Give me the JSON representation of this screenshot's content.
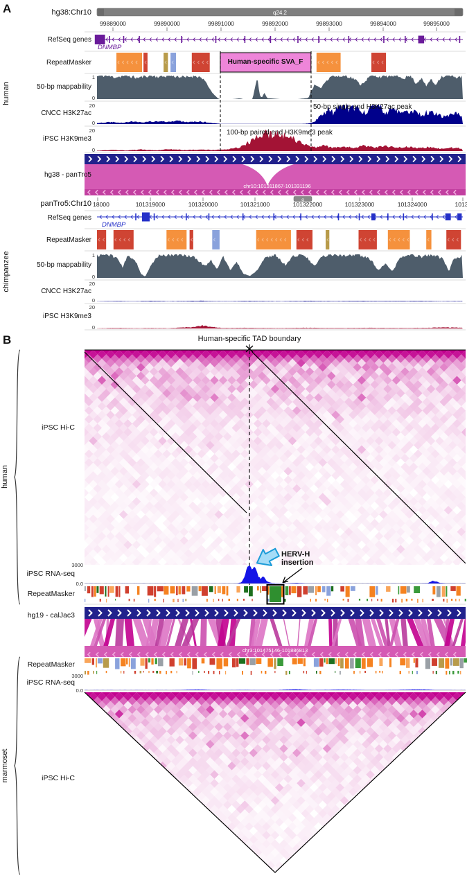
{
  "colors": {
    "ideogram": "#7f7f7f",
    "gene_purple": "#6a1b9a",
    "gene_blue": "#2430c8",
    "repeat_orange": "#f5913d",
    "repeat_red": "#cf4433",
    "repeat_tan": "#b89b4a",
    "repeat_blue": "#8aa2dc",
    "sva_pink": "#ee85d9",
    "mappability": "#4e5d6b",
    "h3k27ac": "#00008b",
    "h3k9me3": "#a31335",
    "align_navy": "#21218c",
    "align_magenta": "#d55ab4",
    "align_band": "#c23fa0",
    "chevron_light": "#f2aee0",
    "hic": "#c2008f",
    "rnaseq_blue": "#1414e6",
    "ribbons": [
      "#cb4fae",
      "#b93a9c",
      "#dd74c4",
      "#c2008f"
    ],
    "repeat_palette_b": [
      "#f58220",
      "#f58220",
      "#f58220",
      "#f9a55a",
      "#3a9a3a",
      "#1d6f1d",
      "#d0402f",
      "#8aa2dc",
      "#9aa0a6",
      "#b89b4a",
      "#f58220",
      "#3a9a3a",
      "#d0402f",
      "#f58220",
      "#f9a55a",
      "#d0402f"
    ],
    "hervh_arrow_stroke": "#1b9cd8",
    "hervh_arrow_fill": "#a6dcf7",
    "hervh_box_green": "#2f8f2f"
  },
  "panel_a": {
    "label": "A",
    "species_top": "human",
    "species_bottom": "chimpanzee",
    "scales": {
      "one": "1",
      "zero": "0",
      "twenty": "20"
    },
    "track_labels": {
      "refseq": "RefSeq genes",
      "repeat": "RepeatMasker",
      "mappability": "50-bp mappability",
      "h3k27ac": "CNCC H3K27ac",
      "h3k9me3": "iPSC H3K9me3"
    },
    "alignment_label": "hg38 - panTro5",
    "alignment_region": "chr10:101311867-101331196",
    "human": {
      "assembly_label": "hg38:Chr10",
      "ideogram_band": "q24.2",
      "gene": "DNMBP",
      "tick_labels": [
        "99889000",
        "99890000",
        "99891000",
        "99892000",
        "99893000",
        "99894000",
        "99895000"
      ],
      "sva_label": "Human-specific SVA_F",
      "h3k27ac_annotation": "50-bp single end H3K27ac peak",
      "h3k9me3_annotation": "100-bp paired end H3K9me3 peak",
      "gene_exons": [
        {
          "f": -0.006,
          "w": 0.028,
          "h": 14
        },
        {
          "f": 0.878,
          "w": 0.016,
          "h": 11
        }
      ],
      "sva": {
        "f": 0.337,
        "w": 0.248
      },
      "repeats": [
        {
          "f": 0.053,
          "w": 0.07,
          "color": "orange"
        },
        {
          "f": 0.127,
          "w": 0.011,
          "color": "red"
        },
        {
          "f": 0.182,
          "w": 0.012,
          "color": "tan"
        },
        {
          "f": 0.201,
          "w": 0.015,
          "color": "blue"
        },
        {
          "f": 0.259,
          "w": 0.049,
          "color": "red"
        },
        {
          "f": 0.6,
          "w": 0.066,
          "color": "orange"
        },
        {
          "f": 0.75,
          "w": 0.04,
          "color": "red"
        }
      ]
    },
    "chimp": {
      "assembly_label": "panTro5:Chr10",
      "ideogram_band": "q",
      "gene": "DNMBP",
      "tick_labels": [
        "18000",
        "101319000",
        "101320000",
        "101321000",
        "101322000",
        "101323000",
        "101324000",
        "1013"
      ],
      "gene_exons": [
        {
          "f": 0.123,
          "w": 0.021,
          "h": 13
        },
        {
          "f": 0.75,
          "w": 0.011,
          "h": 10
        },
        {
          "f": 0.952,
          "w": 0.015,
          "h": 10
        },
        {
          "f": 0.985,
          "w": 0.012,
          "h": 10
        }
      ],
      "repeats": [
        {
          "f": 0.0,
          "w": 0.025,
          "color": "red"
        },
        {
          "f": 0.045,
          "w": 0.055,
          "color": "red"
        },
        {
          "f": 0.19,
          "w": 0.055,
          "color": "orange"
        },
        {
          "f": 0.253,
          "w": 0.01,
          "color": "red"
        },
        {
          "f": 0.315,
          "w": 0.02,
          "color": "blue"
        },
        {
          "f": 0.435,
          "w": 0.095,
          "color": "orange"
        },
        {
          "f": 0.545,
          "w": 0.044,
          "color": "red"
        },
        {
          "f": 0.625,
          "w": 0.01,
          "color": "tan"
        },
        {
          "f": 0.715,
          "w": 0.05,
          "color": "red"
        },
        {
          "f": 0.795,
          "w": 0.06,
          "color": "orange"
        },
        {
          "f": 0.9,
          "w": 0.014,
          "color": "orange"
        },
        {
          "f": 0.955,
          "w": 0.04,
          "color": "red"
        }
      ]
    }
  },
  "panel_b": {
    "label": "B",
    "boundary_annotation": "Human-specific TAD boundary",
    "human_species": "human",
    "marmoset_species": "marmoset",
    "hic_label": "iPSC Hi-C",
    "rnaseq_label": "iPSC RNA-seq",
    "repeat_label": "RepeatMasker",
    "rnaseq_max": "3000",
    "rnaseq_min": "0.0",
    "alignment_label": "hg19 - calJac3",
    "alignment_region": "chr3:101475146-101886813",
    "hervh_line1": "HERV-H",
    "hervh_line2": "insertion"
  },
  "chart_data": [
    {
      "id": "human_mappability",
      "type": "area",
      "title": "50-bp mappability (human hg38)",
      "ylim": [
        0,
        1
      ],
      "points": [
        [
          0,
          0.97
        ],
        [
          0.02,
          1
        ],
        [
          0.05,
          0.93
        ],
        [
          0.08,
          1
        ],
        [
          0.11,
          0.9
        ],
        [
          0.14,
          1
        ],
        [
          0.17,
          0.95
        ],
        [
          0.2,
          1
        ],
        [
          0.24,
          0.92
        ],
        [
          0.27,
          1
        ],
        [
          0.29,
          0.88
        ],
        [
          0.305,
          0.5
        ],
        [
          0.32,
          0.18
        ],
        [
          0.33,
          0.04
        ],
        [
          0.335,
          0
        ],
        [
          0.37,
          0
        ],
        [
          0.39,
          0.03
        ],
        [
          0.4,
          0
        ],
        [
          0.425,
          0
        ],
        [
          0.433,
          0.55
        ],
        [
          0.438,
          1
        ],
        [
          0.444,
          0.2
        ],
        [
          0.45,
          0.05
        ],
        [
          0.458,
          0.28
        ],
        [
          0.465,
          0.04
        ],
        [
          0.5,
          0
        ],
        [
          0.55,
          0
        ],
        [
          0.578,
          0.05
        ],
        [
          0.585,
          0.35
        ],
        [
          0.595,
          0.6
        ],
        [
          0.61,
          0.45
        ],
        [
          0.625,
          0.75
        ],
        [
          0.64,
          1
        ],
        [
          0.66,
          0.95
        ],
        [
          0.68,
          1
        ],
        [
          0.705,
          0.85
        ],
        [
          0.72,
          0.6
        ],
        [
          0.735,
          0.8
        ],
        [
          0.75,
          1
        ],
        [
          0.78,
          0.95
        ],
        [
          0.81,
          1
        ],
        [
          0.84,
          0.9
        ],
        [
          0.858,
          1
        ],
        [
          0.872,
          0.65
        ],
        [
          0.886,
          0.9
        ],
        [
          0.9,
          0.55
        ],
        [
          0.912,
          0.85
        ],
        [
          0.925,
          0.6
        ],
        [
          0.94,
          0.95
        ],
        [
          0.96,
          1
        ],
        [
          0.98,
          0.93
        ],
        [
          1,
          0.97
        ]
      ]
    },
    {
      "id": "human_h3k27ac",
      "type": "area",
      "title": "CNCC H3K27ac (human)",
      "ylim": [
        0,
        20
      ],
      "points": [
        [
          0,
          1
        ],
        [
          0.04,
          2.2
        ],
        [
          0.07,
          1.4
        ],
        [
          0.1,
          2.8
        ],
        [
          0.13,
          1.8
        ],
        [
          0.16,
          3
        ],
        [
          0.19,
          2
        ],
        [
          0.22,
          3.2
        ],
        [
          0.25,
          2.2
        ],
        [
          0.28,
          2.8
        ],
        [
          0.3,
          1.6
        ],
        [
          0.32,
          0.8
        ],
        [
          0.34,
          0.2
        ],
        [
          0.45,
          0.15
        ],
        [
          0.56,
          0.2
        ],
        [
          0.58,
          0.6
        ],
        [
          0.592,
          2
        ],
        [
          0.605,
          6
        ],
        [
          0.62,
          11
        ],
        [
          0.635,
          15
        ],
        [
          0.648,
          11
        ],
        [
          0.66,
          17
        ],
        [
          0.675,
          19.5
        ],
        [
          0.69,
          14
        ],
        [
          0.71,
          18
        ],
        [
          0.73,
          12
        ],
        [
          0.75,
          16
        ],
        [
          0.77,
          18.5
        ],
        [
          0.79,
          12
        ],
        [
          0.81,
          16
        ],
        [
          0.835,
          10
        ],
        [
          0.86,
          14
        ],
        [
          0.885,
          9
        ],
        [
          0.91,
          13
        ],
        [
          0.94,
          8
        ],
        [
          0.97,
          11
        ],
        [
          1,
          9
        ]
      ]
    },
    {
      "id": "human_h3k9me3",
      "type": "area",
      "title": "iPSC H3K9me3 (human)",
      "ylim": [
        0,
        20
      ],
      "points": [
        [
          0,
          0.3
        ],
        [
          0.04,
          1
        ],
        [
          0.08,
          0.5
        ],
        [
          0.12,
          1.4
        ],
        [
          0.16,
          0.7
        ],
        [
          0.2,
          1.8
        ],
        [
          0.24,
          0.9
        ],
        [
          0.28,
          1.4
        ],
        [
          0.32,
          1
        ],
        [
          0.36,
          1.8
        ],
        [
          0.385,
          3
        ],
        [
          0.405,
          6
        ],
        [
          0.425,
          10
        ],
        [
          0.445,
          14
        ],
        [
          0.46,
          16.5
        ],
        [
          0.475,
          15
        ],
        [
          0.49,
          17
        ],
        [
          0.505,
          15.5
        ],
        [
          0.52,
          13
        ],
        [
          0.54,
          11
        ],
        [
          0.56,
          7
        ],
        [
          0.58,
          4.5
        ],
        [
          0.6,
          3.5
        ],
        [
          0.62,
          5
        ],
        [
          0.645,
          3
        ],
        [
          0.67,
          4.5
        ],
        [
          0.7,
          3
        ],
        [
          0.73,
          5
        ],
        [
          0.76,
          3.2
        ],
        [
          0.79,
          4.6
        ],
        [
          0.82,
          3
        ],
        [
          0.85,
          4.2
        ],
        [
          0.88,
          2.6
        ],
        [
          0.91,
          3.8
        ],
        [
          0.94,
          2.2
        ],
        [
          0.97,
          3
        ],
        [
          1,
          2.4
        ]
      ]
    },
    {
      "id": "chimp_mappability",
      "type": "area",
      "title": "50-bp mappability (chimpanzee panTro5)",
      "ylim": [
        0,
        1
      ],
      "points": [
        [
          0,
          0.95
        ],
        [
          0.03,
          1
        ],
        [
          0.055,
          0.85
        ],
        [
          0.07,
          0.45
        ],
        [
          0.085,
          0.95
        ],
        [
          0.105,
          0.75
        ],
        [
          0.12,
          0.18
        ],
        [
          0.132,
          0.05
        ],
        [
          0.148,
          0.55
        ],
        [
          0.17,
          1
        ],
        [
          0.2,
          0.95
        ],
        [
          0.23,
          1
        ],
        [
          0.265,
          0.88
        ],
        [
          0.295,
          0.5
        ],
        [
          0.312,
          0.75
        ],
        [
          0.328,
          0.38
        ],
        [
          0.345,
          0.9
        ],
        [
          0.365,
          0.32
        ],
        [
          0.382,
          0.68
        ],
        [
          0.4,
          0.18
        ],
        [
          0.418,
          0.08
        ],
        [
          0.438,
          0.32
        ],
        [
          0.458,
          0.82
        ],
        [
          0.485,
          1
        ],
        [
          0.515,
          0.55
        ],
        [
          0.538,
          0.95
        ],
        [
          0.565,
          1
        ],
        [
          0.595,
          0.48
        ],
        [
          0.612,
          0.88
        ],
        [
          0.645,
          1
        ],
        [
          0.678,
          0.95
        ],
        [
          0.715,
          1
        ],
        [
          0.748,
          0.78
        ],
        [
          0.768,
          0.32
        ],
        [
          0.788,
          0.58
        ],
        [
          0.808,
          0.28
        ],
        [
          0.828,
          0.85
        ],
        [
          0.858,
          1
        ],
        [
          0.888,
          0.9
        ],
        [
          0.915,
          1
        ],
        [
          0.945,
          0.82
        ],
        [
          0.962,
          0.28
        ],
        [
          0.975,
          0.78
        ],
        [
          1,
          0.95
        ]
      ]
    },
    {
      "id": "chimp_h3k27ac",
      "type": "area",
      "title": "CNCC H3K27ac (chimpanzee)",
      "ylim": [
        0,
        20
      ],
      "points": [
        [
          0,
          0.2
        ],
        [
          0.05,
          0.5
        ],
        [
          0.1,
          0.25
        ],
        [
          0.15,
          0.6
        ],
        [
          0.2,
          0.3
        ],
        [
          0.28,
          0.65
        ],
        [
          0.35,
          0.3
        ],
        [
          0.42,
          0.55
        ],
        [
          0.5,
          0.3
        ],
        [
          0.58,
          0.6
        ],
        [
          0.65,
          0.35
        ],
        [
          0.72,
          0.6
        ],
        [
          0.8,
          0.4
        ],
        [
          0.88,
          0.55
        ],
        [
          0.94,
          0.3
        ],
        [
          1,
          0.4
        ]
      ]
    },
    {
      "id": "chimp_h3k9me3",
      "type": "area",
      "title": "iPSC H3K9me3 (chimpanzee)",
      "ylim": [
        0,
        20
      ],
      "points": [
        [
          0,
          0.2
        ],
        [
          0.05,
          0.55
        ],
        [
          0.1,
          0.3
        ],
        [
          0.15,
          0.5
        ],
        [
          0.2,
          0.35
        ],
        [
          0.26,
          1.2
        ],
        [
          0.29,
          2.8
        ],
        [
          0.315,
          1.4
        ],
        [
          0.34,
          0.5
        ],
        [
          0.42,
          0.6
        ],
        [
          0.5,
          0.4
        ],
        [
          0.58,
          0.65
        ],
        [
          0.66,
          0.4
        ],
        [
          0.74,
          0.6
        ],
        [
          0.82,
          0.45
        ],
        [
          0.9,
          0.6
        ],
        [
          0.95,
          1
        ],
        [
          1,
          0.7
        ]
      ]
    },
    {
      "id": "human_rnaseq",
      "type": "area",
      "title": "iPSC RNA-seq (human hg19)",
      "ylim": [
        0,
        3000
      ],
      "points": [
        [
          0,
          8
        ],
        [
          0.06,
          4
        ],
        [
          0.12,
          12
        ],
        [
          0.2,
          6
        ],
        [
          0.28,
          10
        ],
        [
          0.36,
          8
        ],
        [
          0.4,
          20
        ],
        [
          0.412,
          200
        ],
        [
          0.42,
          1100
        ],
        [
          0.427,
          2900
        ],
        [
          0.433,
          3000
        ],
        [
          0.44,
          2300
        ],
        [
          0.447,
          2750
        ],
        [
          0.455,
          1400
        ],
        [
          0.462,
          700
        ],
        [
          0.47,
          1300
        ],
        [
          0.478,
          420
        ],
        [
          0.488,
          130
        ],
        [
          0.5,
          50
        ],
        [
          0.53,
          25
        ],
        [
          0.555,
          110
        ],
        [
          0.58,
          35
        ],
        [
          0.65,
          12
        ],
        [
          0.75,
          8
        ],
        [
          0.85,
          15
        ],
        [
          0.9,
          50
        ],
        [
          0.912,
          430
        ],
        [
          0.922,
          360
        ],
        [
          0.933,
          100
        ],
        [
          0.95,
          25
        ],
        [
          1,
          8
        ]
      ]
    },
    {
      "id": "marmoset_rnaseq",
      "type": "area",
      "title": "iPSC RNA-seq (marmoset)",
      "ylim": [
        0,
        3000
      ],
      "points": [
        [
          0,
          5
        ],
        [
          0.08,
          12
        ],
        [
          0.16,
          6
        ],
        [
          0.24,
          20
        ],
        [
          0.3,
          140
        ],
        [
          0.34,
          25
        ],
        [
          0.42,
          60
        ],
        [
          0.5,
          20
        ],
        [
          0.55,
          170
        ],
        [
          0.6,
          40
        ],
        [
          0.68,
          110
        ],
        [
          0.75,
          25
        ],
        [
          0.82,
          60
        ],
        [
          0.88,
          150
        ],
        [
          0.93,
          30
        ],
        [
          1,
          10
        ]
      ]
    },
    {
      "id": "human_hic",
      "type": "heatmap",
      "title": "iPSC Hi-C (human)",
      "orientation": "rotated-full",
      "colors": [
        "#ffffff",
        "#c2008f"
      ],
      "tad_boundary_f": 0.433,
      "note": "human-specific TAD boundary at dashed line; two TADs split at boundary"
    },
    {
      "id": "marmoset_hic",
      "type": "heatmap",
      "title": "iPSC Hi-C (marmoset)",
      "orientation": "triangle-down",
      "colors": [
        "#ffffff",
        "#c2008f"
      ],
      "note": "single continuous domain, no boundary"
    }
  ]
}
